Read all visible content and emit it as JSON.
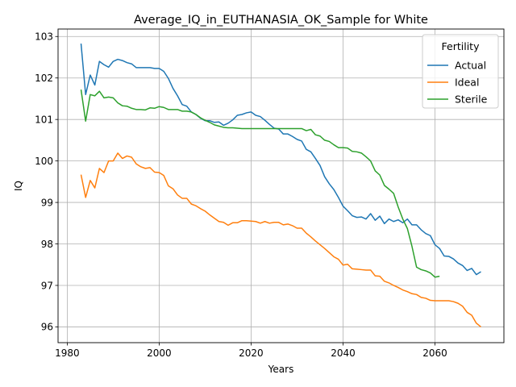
{
  "chart_data": {
    "type": "line",
    "title": "Average_IQ_in_EUTHANASIA_OK_Sample for White",
    "xlabel": "Years",
    "ylabel": "IQ",
    "xlim": [
      1978,
      2075
    ],
    "ylim": [
      95.62,
      103.18
    ],
    "xticks": [
      1980,
      2000,
      2020,
      2040,
      2060
    ],
    "yticks": [
      96,
      97,
      98,
      99,
      100,
      101,
      102,
      103
    ],
    "grid": true,
    "legend": {
      "title": "Fertility",
      "position": "top-right"
    },
    "series": [
      {
        "name": "Actual",
        "color": "#1f77b4",
        "x": [
          1983,
          1984,
          1985,
          1986,
          1987,
          1988,
          1989,
          1990,
          1991,
          1992,
          1993,
          1994,
          1995,
          1996,
          1997,
          1998,
          1999,
          2000,
          2001,
          2002,
          2003,
          2004,
          2005,
          2006,
          2007,
          2008,
          2009,
          2010,
          2011,
          2012,
          2013,
          2014,
          2015,
          2016,
          2017,
          2018,
          2019,
          2020,
          2021,
          2022,
          2023,
          2024,
          2025,
          2026,
          2027,
          2028,
          2029,
          2030,
          2031,
          2032,
          2033,
          2034,
          2035,
          2036,
          2037,
          2038,
          2039,
          2040,
          2041,
          2042,
          2043,
          2044,
          2045,
          2046,
          2047,
          2048,
          2049,
          2050,
          2051,
          2052,
          2053,
          2054,
          2055,
          2056,
          2057,
          2058,
          2059,
          2060,
          2061,
          2062,
          2063,
          2064,
          2065,
          2066,
          2067,
          2068,
          2069,
          2070
        ],
        "values": [
          102.83,
          101.6,
          102.07,
          101.83,
          102.4,
          102.32,
          102.26,
          102.4,
          102.45,
          102.42,
          102.37,
          102.34,
          102.25,
          102.25,
          102.25,
          102.25,
          102.23,
          102.23,
          102.16,
          101.99,
          101.75,
          101.57,
          101.36,
          101.32,
          101.18,
          101.12,
          101.03,
          100.97,
          100.97,
          100.93,
          100.94,
          100.86,
          100.91,
          100.99,
          101.1,
          101.12,
          101.16,
          101.18,
          101.1,
          101.07,
          100.98,
          100.88,
          100.79,
          100.77,
          100.65,
          100.65,
          100.59,
          100.52,
          100.48,
          100.28,
          100.22,
          100.06,
          99.89,
          99.62,
          99.45,
          99.31,
          99.12,
          98.91,
          98.8,
          98.68,
          98.64,
          98.65,
          98.6,
          98.73,
          98.57,
          98.67,
          98.49,
          98.6,
          98.54,
          98.58,
          98.51,
          98.6,
          98.46,
          98.46,
          98.34,
          98.25,
          98.2,
          97.98,
          97.89,
          97.71,
          97.7,
          97.64,
          97.54,
          97.48,
          97.36,
          97.41,
          97.26,
          97.33
        ]
      },
      {
        "name": "Ideal",
        "color": "#ff7f0e",
        "x": [
          1983,
          1984,
          1985,
          1986,
          1987,
          1988,
          1989,
          1990,
          1991,
          1992,
          1993,
          1994,
          1995,
          1996,
          1997,
          1998,
          1999,
          2000,
          2001,
          2002,
          2003,
          2004,
          2005,
          2006,
          2007,
          2008,
          2009,
          2010,
          2011,
          2012,
          2013,
          2014,
          2015,
          2016,
          2017,
          2018,
          2019,
          2020,
          2021,
          2022,
          2023,
          2024,
          2025,
          2026,
          2027,
          2028,
          2029,
          2030,
          2031,
          2032,
          2033,
          2034,
          2035,
          2036,
          2037,
          2038,
          2039,
          2040,
          2041,
          2042,
          2043,
          2044,
          2045,
          2046,
          2047,
          2048,
          2049,
          2050,
          2051,
          2052,
          2053,
          2054,
          2055,
          2056,
          2057,
          2058,
          2059,
          2060,
          2061,
          2062,
          2063,
          2064,
          2065,
          2066,
          2067,
          2068,
          2069,
          2070
        ],
        "values": [
          99.67,
          99.12,
          99.53,
          99.35,
          99.82,
          99.72,
          100.0,
          100.0,
          100.19,
          100.06,
          100.12,
          100.09,
          99.93,
          99.86,
          99.82,
          99.84,
          99.73,
          99.72,
          99.65,
          99.4,
          99.33,
          99.18,
          99.1,
          99.1,
          98.96,
          98.92,
          98.85,
          98.79,
          98.7,
          98.62,
          98.54,
          98.52,
          98.45,
          98.51,
          98.51,
          98.56,
          98.56,
          98.55,
          98.54,
          98.5,
          98.54,
          98.5,
          98.52,
          98.52,
          98.46,
          98.48,
          98.44,
          98.38,
          98.38,
          98.26,
          98.17,
          98.07,
          97.98,
          97.89,
          97.79,
          97.69,
          97.63,
          97.49,
          97.51,
          97.4,
          97.39,
          97.38,
          97.37,
          97.37,
          97.23,
          97.22,
          97.1,
          97.06,
          97.0,
          96.95,
          96.89,
          96.85,
          96.8,
          96.78,
          96.71,
          96.69,
          96.64,
          96.63,
          96.63,
          96.63,
          96.63,
          96.61,
          96.57,
          96.5,
          96.35,
          96.28,
          96.09,
          96.0
        ]
      },
      {
        "name": "Sterile",
        "color": "#2ca02c",
        "x": [
          1983,
          1984,
          1985,
          1986,
          1987,
          1988,
          1989,
          1990,
          1991,
          1992,
          1993,
          1994,
          1995,
          1996,
          1997,
          1998,
          1999,
          2000,
          2001,
          2002,
          2003,
          2004,
          2005,
          2006,
          2007,
          2008,
          2009,
          2010,
          2011,
          2012,
          2013,
          2014,
          2015,
          2016,
          2017,
          2018,
          2019,
          2020,
          2021,
          2022,
          2023,
          2024,
          2025,
          2026,
          2027,
          2028,
          2029,
          2030,
          2031,
          2032,
          2033,
          2034,
          2035,
          2036,
          2037,
          2038,
          2039,
          2040,
          2041,
          2042,
          2043,
          2044,
          2045,
          2046,
          2047,
          2048,
          2049,
          2050,
          2051,
          2052,
          2053,
          2054,
          2055,
          2056,
          2057,
          2058,
          2059,
          2060,
          2061
        ],
        "values": [
          101.72,
          100.96,
          101.6,
          101.57,
          101.68,
          101.52,
          101.54,
          101.52,
          101.4,
          101.33,
          101.32,
          101.27,
          101.24,
          101.24,
          101.23,
          101.28,
          101.27,
          101.31,
          101.29,
          101.24,
          101.24,
          101.24,
          101.2,
          101.2,
          101.18,
          101.12,
          101.04,
          100.98,
          100.93,
          100.87,
          100.84,
          100.81,
          100.8,
          100.8,
          100.79,
          100.78,
          100.78,
          100.78,
          100.78,
          100.78,
          100.78,
          100.78,
          100.78,
          100.78,
          100.78,
          100.78,
          100.78,
          100.78,
          100.78,
          100.73,
          100.76,
          100.63,
          100.6,
          100.5,
          100.47,
          100.39,
          100.32,
          100.32,
          100.31,
          100.23,
          100.22,
          100.19,
          100.1,
          100.0,
          99.76,
          99.66,
          99.41,
          99.32,
          99.22,
          98.89,
          98.6,
          98.37,
          97.94,
          97.44,
          97.38,
          97.35,
          97.3,
          97.2,
          97.22
        ]
      }
    ]
  }
}
